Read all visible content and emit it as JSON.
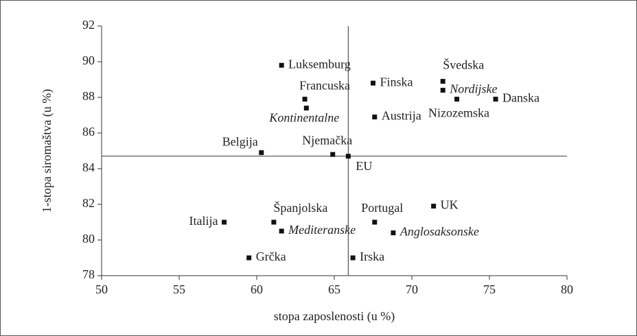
{
  "chart_data": {
    "type": "scatter",
    "x_label": "stopa zaposlenosti (u %)",
    "y_label": "1-stopa siromaštva (u %)",
    "xlim": [
      50,
      80
    ],
    "xticks": [
      50,
      55,
      60,
      65,
      70,
      75,
      80
    ],
    "ylim": [
      78,
      92
    ],
    "yticks": [
      78,
      80,
      82,
      84,
      86,
      88,
      90,
      92
    ],
    "color": "#111111",
    "reference_point": 11,
    "points": [
      {
        "label": "Luksemburg",
        "x": 61.6,
        "y": 89.8
      },
      {
        "label": "Francuska",
        "x": 63.1,
        "y": 87.9
      },
      {
        "label": "Kontinentalne",
        "x": 63.2,
        "y": 87.4,
        "italic": true
      },
      {
        "label": "Finska",
        "x": 67.5,
        "y": 88.8
      },
      {
        "label": "Švedska",
        "x": 72.0,
        "y": 88.9
      },
      {
        "label": "Nordijske",
        "x": 72.0,
        "y": 88.4,
        "italic": true
      },
      {
        "label": "Danska",
        "x": 75.4,
        "y": 87.9
      },
      {
        "label": "Nizozemska",
        "x": 72.9,
        "y": 87.9
      },
      {
        "label": "Austrija",
        "x": 67.6,
        "y": 86.9
      },
      {
        "label": "Belgija",
        "x": 60.3,
        "y": 84.9
      },
      {
        "label": "Njemačka",
        "x": 64.9,
        "y": 84.8
      },
      {
        "label": "EU",
        "x": 65.9,
        "y": 84.7
      },
      {
        "label": "UK",
        "x": 71.4,
        "y": 81.9
      },
      {
        "label": "Portugal",
        "x": 67.6,
        "y": 81.0
      },
      {
        "label": "Italija",
        "x": 57.9,
        "y": 81.0
      },
      {
        "label": "Španjolska",
        "x": 61.1,
        "y": 81.0
      },
      {
        "label": "Mediteranske",
        "x": 61.6,
        "y": 80.5,
        "italic": true
      },
      {
        "label": "Anglosaksonske",
        "x": 68.8,
        "y": 80.4,
        "italic": true
      },
      {
        "label": "Grčka",
        "x": 59.5,
        "y": 79.0
      },
      {
        "label": "Irska",
        "x": 66.2,
        "y": 79.0
      }
    ]
  }
}
